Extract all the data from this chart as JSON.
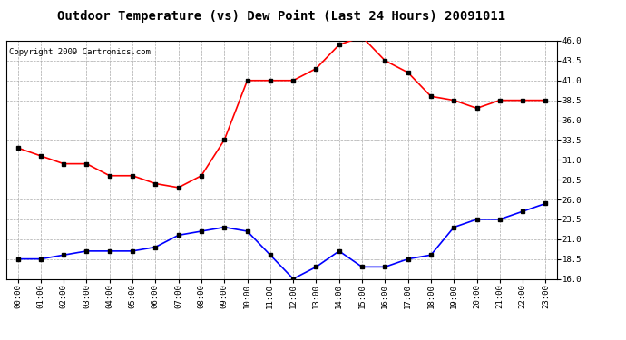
{
  "title": "Outdoor Temperature (vs) Dew Point (Last 24 Hours) 20091011",
  "copyright": "Copyright 2009 Cartronics.com",
  "x_labels": [
    "00:00",
    "01:00",
    "02:00",
    "03:00",
    "04:00",
    "05:00",
    "06:00",
    "07:00",
    "08:00",
    "09:00",
    "10:00",
    "11:00",
    "12:00",
    "13:00",
    "14:00",
    "15:00",
    "16:00",
    "17:00",
    "18:00",
    "19:00",
    "20:00",
    "21:00",
    "22:00",
    "23:00"
  ],
  "temp_data": [
    32.5,
    31.5,
    30.5,
    30.5,
    29.0,
    29.0,
    28.0,
    27.5,
    29.0,
    33.5,
    41.0,
    41.0,
    41.0,
    42.5,
    45.5,
    46.5,
    43.5,
    42.0,
    39.0,
    38.5,
    37.5,
    38.5,
    38.5,
    38.5
  ],
  "dew_data": [
    18.5,
    18.5,
    19.0,
    19.5,
    19.5,
    19.5,
    20.0,
    21.5,
    22.0,
    22.5,
    22.0,
    19.0,
    16.0,
    17.5,
    19.5,
    17.5,
    17.5,
    18.5,
    19.0,
    22.5,
    23.5,
    23.5,
    24.5,
    25.5
  ],
  "temp_color": "#ff0000",
  "dew_color": "#0000ff",
  "ylim": [
    16.0,
    46.0
  ],
  "yticks": [
    16.0,
    18.5,
    21.0,
    23.5,
    26.0,
    28.5,
    31.0,
    33.5,
    36.0,
    38.5,
    41.0,
    43.5,
    46.0
  ],
  "bg_color": "#ffffff",
  "plot_bg_color": "#ffffff",
  "grid_color": "#aaaaaa",
  "title_fontsize": 10,
  "copyright_fontsize": 6.5,
  "marker": "s",
  "marker_size": 2.5,
  "line_width": 1.2
}
